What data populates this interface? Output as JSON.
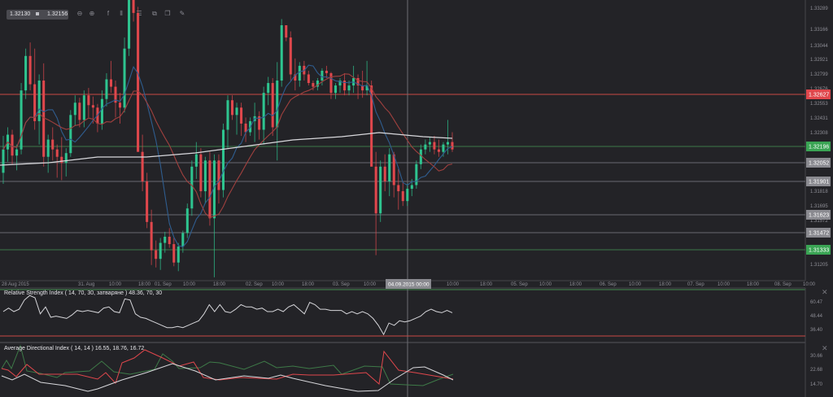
{
  "toolbar": {
    "bid": "1.32130",
    "separator_icon": "square-icon",
    "ask": "1.32156",
    "icons": [
      {
        "name": "zoom-out-icon",
        "glyph": "⊖"
      },
      {
        "name": "zoom-in-icon",
        "glyph": "⊕"
      },
      {
        "name": "indicators-icon",
        "glyph": "f"
      },
      {
        "name": "candlestick-type-icon",
        "glyph": "⫴"
      },
      {
        "name": "horizontal-lines-icon",
        "glyph": "☰"
      },
      {
        "name": "template-icon",
        "glyph": "⧉"
      },
      {
        "name": "copy-icon",
        "glyph": "❐"
      },
      {
        "name": "draw-icon",
        "glyph": "✎"
      }
    ]
  },
  "colors": {
    "background": "#232327",
    "bull": "#2ec48f",
    "bear": "#e0474c",
    "ma_fast": "#2f5d8f",
    "ma_mid": "#a0403e",
    "ma_slow": "#d8d8dc",
    "grid_gray": "#6a6a70",
    "level_green": "#3e7a48",
    "level_red": "#c94a44",
    "label_red": "#e0474c",
    "label_green": "#3aa454",
    "label_gray": "#8a8a90"
  },
  "price_axis": {
    "ticks": [
      "1.33289",
      "1.33166",
      "1.33044",
      "1.32921",
      "1.32799",
      "1.32676",
      "1.32553",
      "1.32431",
      "1.32308",
      "1.31818",
      "1.31695",
      "1.31572",
      "1.31205"
    ],
    "labels": [
      {
        "value": "1.32627",
        "color": "red"
      },
      {
        "value": "1.32196",
        "color": "green"
      },
      {
        "value": "1.32052",
        "color": "gray"
      },
      {
        "value": "1.31901",
        "color": "gray"
      },
      {
        "value": "1.31623",
        "color": "gray"
      },
      {
        "value": "1.31472",
        "color": "gray"
      },
      {
        "value": "1.31333",
        "color": "green"
      }
    ]
  },
  "time_axis": {
    "ticks": [
      "28 Aug 2015",
      "31. Aug",
      "10:00",
      "18:00",
      "01. Sep",
      "10:00",
      "18:00",
      "02. Sep",
      "10:00",
      "18:00",
      "03. Sep",
      "10:00",
      "10:00",
      "18:00",
      "05. Sep",
      "10:00",
      "18:00",
      "06. Sep",
      "10:00",
      "18:00",
      "07. Sep",
      "10:00",
      "18:00",
      "08. Sep",
      "10:00"
    ],
    "crosshair_label": "04.09.2015 00:00"
  },
  "rsi": {
    "title": "Relative Strength Index ( 14, 70, 30, затварянe ) 48.36, 70, 30",
    "ticks": [
      "60.47",
      "48.44",
      "36.40"
    ]
  },
  "adx": {
    "title": "Average Directional Index ( 14, 14 ) 16.55, 18.76, 16.72",
    "ticks": [
      "30.66",
      "22.68",
      "14.70"
    ]
  },
  "chart_data": {
    "type": "candlestick",
    "title": "",
    "instrument_bid_ask": [
      "1.32130",
      "1.32156"
    ],
    "x_range": [
      "28 Aug 2015",
      "08 Sep 2015 10:00"
    ],
    "ylim": [
      1.3115,
      1.3335
    ],
    "y_ticks": [
      1.33289,
      1.33166,
      1.33044,
      1.32921,
      1.32799,
      1.32676,
      1.32553,
      1.32431,
      1.32308,
      1.31818,
      1.31695,
      1.31572,
      1.31205
    ],
    "horizontal_levels": [
      {
        "value": 1.32627,
        "color": "red"
      },
      {
        "value": 1.32196,
        "color": "green"
      },
      {
        "value": 1.32052,
        "color": "gray"
      },
      {
        "value": 1.31901,
        "color": "gray"
      },
      {
        "value": 1.31623,
        "color": "gray"
      },
      {
        "value": 1.31472,
        "color": "gray"
      },
      {
        "value": 1.31333,
        "color": "green"
      }
    ],
    "crosshair_time": "04.09.2015 00:00",
    "candles_ohlc": [
      [
        1.3195,
        1.3225,
        1.3186,
        1.3214
      ],
      [
        1.3214,
        1.3232,
        1.3204,
        1.3226
      ],
      [
        1.3226,
        1.323,
        1.3202,
        1.3209
      ],
      [
        1.3209,
        1.3218,
        1.3197,
        1.3214
      ],
      [
        1.3214,
        1.3268,
        1.321,
        1.3262
      ],
      [
        1.3262,
        1.3296,
        1.3255,
        1.329
      ],
      [
        1.329,
        1.3301,
        1.3262,
        1.3267
      ],
      [
        1.3267,
        1.3296,
        1.323,
        1.3237
      ],
      [
        1.3237,
        1.3275,
        1.3218,
        1.327
      ],
      [
        1.327,
        1.3284,
        1.32,
        1.3208
      ],
      [
        1.3208,
        1.3226,
        1.3195,
        1.3222
      ],
      [
        1.3222,
        1.3232,
        1.3205,
        1.3214
      ],
      [
        1.3214,
        1.3218,
        1.3191,
        1.3208
      ],
      [
        1.3208,
        1.3224,
        1.3189,
        1.3203
      ],
      [
        1.3203,
        1.3215,
        1.3192,
        1.3211
      ],
      [
        1.3211,
        1.3246,
        1.3208,
        1.3242
      ],
      [
        1.3242,
        1.3258,
        1.3233,
        1.3252
      ],
      [
        1.3252,
        1.3256,
        1.3232,
        1.3238
      ],
      [
        1.3238,
        1.3262,
        1.3232,
        1.3258
      ],
      [
        1.3258,
        1.3264,
        1.324,
        1.325
      ],
      [
        1.325,
        1.3257,
        1.3235,
        1.3248
      ],
      [
        1.3248,
        1.3251,
        1.3228,
        1.3235
      ],
      [
        1.3235,
        1.3262,
        1.323,
        1.3255
      ],
      [
        1.3255,
        1.3276,
        1.3249,
        1.3271
      ],
      [
        1.3271,
        1.3286,
        1.326,
        1.3265
      ],
      [
        1.3265,
        1.327,
        1.324,
        1.3252
      ],
      [
        1.3252,
        1.326,
        1.3235,
        1.3248
      ],
      [
        1.3248,
        1.3305,
        1.3244,
        1.3296
      ],
      [
        1.3296,
        1.3342,
        1.329,
        1.3337
      ],
      [
        1.3337,
        1.3342,
        1.3318,
        1.3325
      ],
      [
        1.3325,
        1.333,
        1.324,
        1.3212
      ],
      [
        1.3212,
        1.3226,
        1.318,
        1.3188
      ],
      [
        1.3188,
        1.3195,
        1.315,
        1.3155
      ],
      [
        1.3155,
        1.3165,
        1.312,
        1.3132
      ],
      [
        1.3132,
        1.314,
        1.3118,
        1.3125
      ],
      [
        1.3125,
        1.3142,
        1.3116,
        1.3138
      ],
      [
        1.3138,
        1.3147,
        1.313,
        1.3143
      ],
      [
        1.3143,
        1.315,
        1.3134,
        1.3137
      ],
      [
        1.3137,
        1.3142,
        1.3119,
        1.3122
      ],
      [
        1.3122,
        1.3138,
        1.3115,
        1.3135
      ],
      [
        1.3135,
        1.3148,
        1.313,
        1.3146
      ],
      [
        1.3146,
        1.317,
        1.3142,
        1.3166
      ],
      [
        1.3166,
        1.3205,
        1.316,
        1.32
      ],
      [
        1.32,
        1.322,
        1.319,
        1.321
      ],
      [
        1.321,
        1.3215,
        1.3175,
        1.318
      ],
      [
        1.318,
        1.3208,
        1.317,
        1.3205
      ],
      [
        1.3205,
        1.3212,
        1.3152,
        1.3158
      ],
      [
        1.3158,
        1.321,
        1.311,
        1.3205
      ],
      [
        1.3205,
        1.321,
        1.317,
        1.3181
      ],
      [
        1.3181,
        1.3235,
        1.3175,
        1.323
      ],
      [
        1.323,
        1.3258,
        1.3215,
        1.3254
      ],
      [
        1.3254,
        1.3258,
        1.3238,
        1.3242
      ],
      [
        1.3242,
        1.3252,
        1.3226,
        1.3248
      ],
      [
        1.3248,
        1.3252,
        1.3225,
        1.3235
      ],
      [
        1.3235,
        1.324,
        1.322,
        1.3228
      ],
      [
        1.3228,
        1.324,
        1.3225,
        1.3237
      ],
      [
        1.3237,
        1.3252,
        1.322,
        1.3241
      ],
      [
        1.3241,
        1.3245,
        1.3222,
        1.323
      ],
      [
        1.323,
        1.3265,
        1.3218,
        1.326
      ],
      [
        1.326,
        1.3273,
        1.325,
        1.3268
      ],
      [
        1.3268,
        1.3272,
        1.3225,
        1.3232
      ],
      [
        1.3232,
        1.3285,
        1.3205,
        1.327
      ],
      [
        1.327,
        1.332,
        1.3265,
        1.3315
      ],
      [
        1.3315,
        1.331,
        1.3302,
        1.3305
      ],
      [
        1.3305,
        1.331,
        1.327,
        1.3275
      ],
      [
        1.3275,
        1.3288,
        1.3262,
        1.327
      ],
      [
        1.327,
        1.3285,
        1.3265,
        1.3282
      ],
      [
        1.3282,
        1.3286,
        1.327,
        1.3275
      ],
      [
        1.3275,
        1.3278,
        1.3266,
        1.3268
      ],
      [
        1.3268,
        1.327,
        1.3262,
        1.3265
      ],
      [
        1.3265,
        1.3272,
        1.3262,
        1.327
      ],
      [
        1.327,
        1.328,
        1.3266,
        1.3278
      ],
      [
        1.3278,
        1.3282,
        1.3272,
        1.3276
      ],
      [
        1.3276,
        1.3277,
        1.3255,
        1.326
      ],
      [
        1.326,
        1.3268,
        1.3255,
        1.3266
      ],
      [
        1.3266,
        1.3272,
        1.326,
        1.327
      ],
      [
        1.327,
        1.3276,
        1.3258,
        1.3262
      ],
      [
        1.3262,
        1.327,
        1.3258,
        1.3266
      ],
      [
        1.3266,
        1.3282,
        1.326,
        1.3272
      ],
      [
        1.3272,
        1.3275,
        1.3255,
        1.3266
      ],
      [
        1.3266,
        1.3278,
        1.3256,
        1.3262
      ],
      [
        1.3262,
        1.3286,
        1.3258,
        1.3266
      ],
      [
        1.3266,
        1.327,
        1.321,
        1.32
      ],
      [
        1.32,
        1.3212,
        1.3128,
        1.3162
      ],
      [
        1.3162,
        1.3205,
        1.3155,
        1.32
      ],
      [
        1.32,
        1.321,
        1.318,
        1.3188
      ],
      [
        1.3188,
        1.3215,
        1.3176,
        1.321
      ],
      [
        1.321,
        1.3212,
        1.3175,
        1.3185
      ],
      [
        1.3185,
        1.3198,
        1.3165,
        1.318
      ],
      [
        1.318,
        1.3188,
        1.3168,
        1.3172
      ],
      [
        1.3172,
        1.3186,
        1.3168,
        1.3182
      ],
      [
        1.3182,
        1.319,
        1.3176,
        1.3185
      ],
      [
        1.3185,
        1.3205,
        1.3182,
        1.3202
      ],
      [
        1.3202,
        1.3218,
        1.3198,
        1.3214
      ],
      [
        1.3214,
        1.3222,
        1.321,
        1.3218
      ],
      [
        1.3218,
        1.3224,
        1.3212,
        1.322
      ],
      [
        1.322,
        1.3225,
        1.321,
        1.3214
      ],
      [
        1.3214,
        1.3222,
        1.3208,
        1.3212
      ],
      [
        1.3212,
        1.322,
        1.3208,
        1.3218
      ],
      [
        1.3218,
        1.3238,
        1.321,
        1.322
      ],
      [
        1.322,
        1.3228,
        1.3212,
        1.3214
      ]
    ],
    "moving_averages": [
      {
        "name": "fast",
        "color": "blue"
      },
      {
        "name": "medium",
        "color": "red"
      },
      {
        "name": "slow",
        "color": "white"
      }
    ],
    "indicators": [
      {
        "name": "Relative Strength Index",
        "params": [
          14,
          70,
          30
        ],
        "values": [
          48.36,
          70,
          30
        ],
        "ylim": [
          30,
          66
        ]
      },
      {
        "name": "Average Directional Index",
        "params": [
          14,
          14
        ],
        "values": [
          16.55,
          18.76,
          16.72
        ],
        "ylim": [
          12,
          34
        ]
      }
    ]
  }
}
